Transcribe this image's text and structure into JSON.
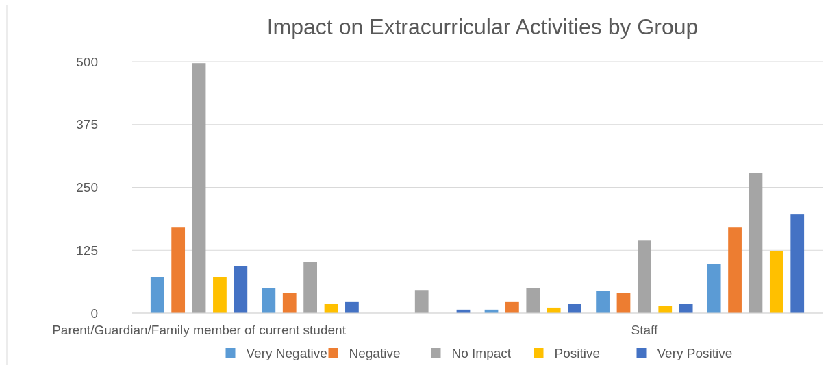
{
  "chart_data": {
    "type": "bar",
    "title": "Impact on Extracurricular Activities by Group",
    "categories": [
      "Parent/Guardian/Family member of current student",
      null,
      null,
      null,
      "Staff",
      null
    ],
    "series": [
      {
        "name": "Very Negative",
        "color": "#5b9bd5",
        "values": [
          72,
          50,
          0,
          7,
          44,
          98
        ]
      },
      {
        "name": "Negative",
        "color": "#ed7d31",
        "values": [
          170,
          40,
          0,
          22,
          40,
          170
        ]
      },
      {
        "name": "No Impact",
        "color": "#a5a5a5",
        "values": [
          497,
          101,
          46,
          50,
          144,
          279
        ]
      },
      {
        "name": "Positive",
        "color": "#ffc000",
        "values": [
          72,
          18,
          0,
          11,
          14,
          124
        ]
      },
      {
        "name": "Very Positive",
        "color": "#4472c4",
        "values": [
          94,
          22,
          7,
          18,
          18,
          196
        ]
      }
    ],
    "ylim": [
      0,
      500
    ],
    "yticks": [
      0,
      125,
      250,
      375,
      500
    ],
    "grid": "y",
    "legend": "bottom"
  }
}
